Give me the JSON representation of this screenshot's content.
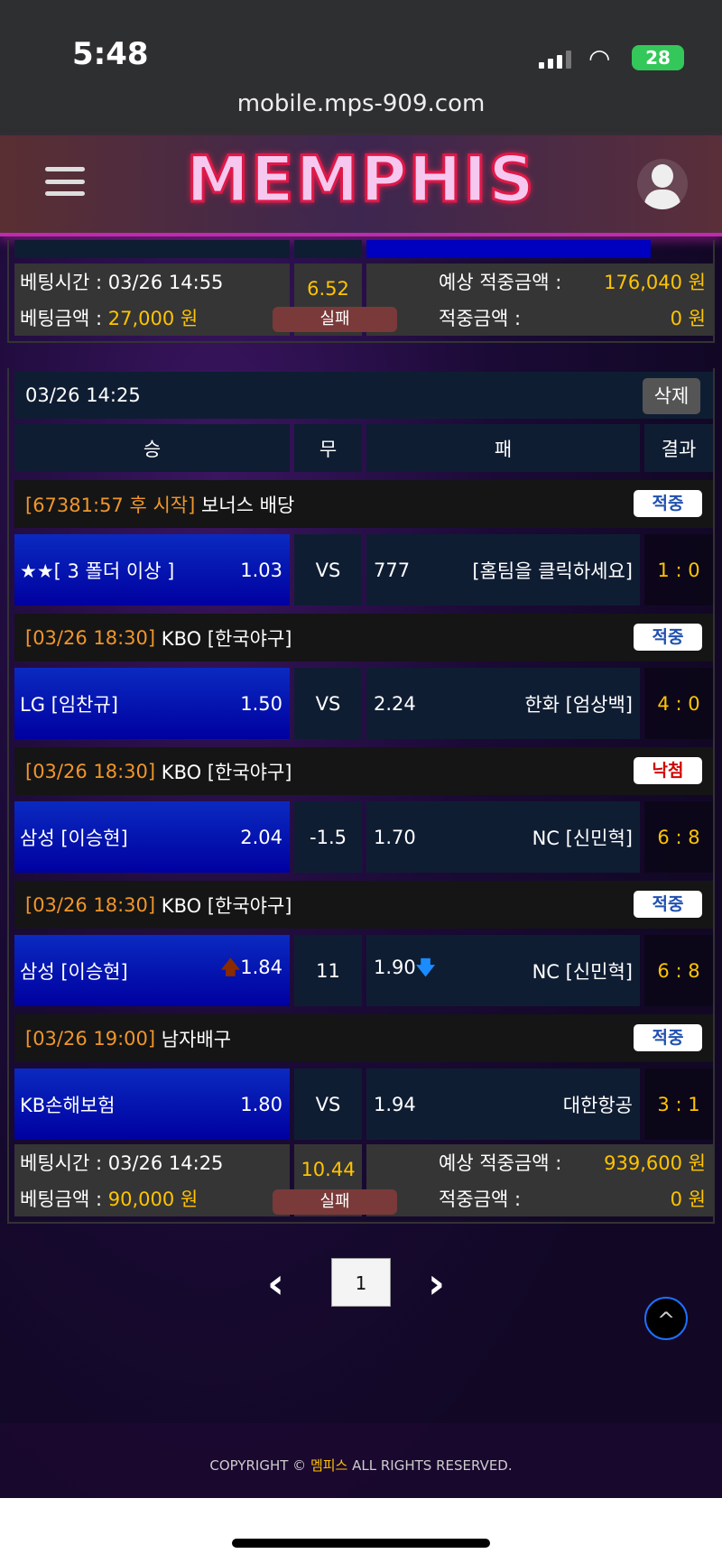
{
  "status_bar": {
    "time": "5:48",
    "url": "mobile.mps-909.com",
    "battery": "28"
  },
  "header": {
    "logo": "MEMPHIS"
  },
  "prev_bet": {
    "bet_time": "베팅시간 : 03/26 14:55",
    "bet_amount_label": "베팅금액 : ",
    "bet_amount": "27,000 원",
    "odds": "6.52",
    "result": "실패",
    "expected_label": "예상 적중금액 :",
    "expected": "176,040 원",
    "won_label": "적중금액 :",
    "won": "0 원"
  },
  "bet": {
    "date": "03/26 14:25",
    "delete_label": "삭제",
    "columns": [
      "승",
      "무",
      "패",
      "결과"
    ],
    "matches": [
      {
        "time": "[67381:57 후 시작]",
        "league": "보너스 배당",
        "status": "적중",
        "status_type": "hit",
        "home": "★★[ 3 폴더 이상 ]",
        "home_odds": "1.03",
        "draw": "VS",
        "away_odds": "777",
        "away": "[홈팀을 클릭하세요]",
        "score": "1 : 0"
      },
      {
        "time": "[03/26 18:30]",
        "league": "KBO [한국야구]",
        "status": "적중",
        "status_type": "hit",
        "home": "LG [임찬규]",
        "home_odds": "1.50",
        "draw": "VS",
        "away_odds": "2.24",
        "away": "한화 [엄상백]",
        "score": "4 : 0"
      },
      {
        "time": "[03/26 18:30]",
        "league": "KBO [한국야구]",
        "status": "낙첨",
        "status_type": "miss",
        "home": "삼성 [이승현]",
        "home_odds": "2.04",
        "draw": "-1.5",
        "away_odds": "1.70",
        "away": "NC [신민혁]",
        "score": "6 : 8"
      },
      {
        "time": "[03/26 18:30]",
        "league": "KBO [한국야구]",
        "status": "적중",
        "status_type": "hit",
        "home": "삼성 [이승현]",
        "home_odds": "1.84",
        "draw": "11",
        "away_odds": "1.90",
        "away": "NC [신민혁]",
        "score": "6 : 8",
        "arrows": true
      },
      {
        "time": "[03/26 19:00]",
        "league": "남자배구",
        "status": "적중",
        "status_type": "hit",
        "home": "KB손해보험",
        "home_odds": "1.80",
        "draw": "VS",
        "away_odds": "1.94",
        "away": "대한항공",
        "score": "3 : 1"
      }
    ],
    "bet_time": "베팅시간 : 03/26 14:25",
    "bet_amount_label": "베팅금액 : ",
    "bet_amount": "90,000 원",
    "odds": "10.44",
    "result": "실패",
    "expected_label": "예상 적중금액 :",
    "expected": "939,600 원",
    "won_label": "적중금액 :",
    "won": "0 원"
  },
  "pagination": {
    "current": "1"
  },
  "footer": {
    "prefix": "COPYRIGHT © ",
    "brand": "멤피스",
    "suffix": " ALL RIGHTS RESERVED."
  }
}
